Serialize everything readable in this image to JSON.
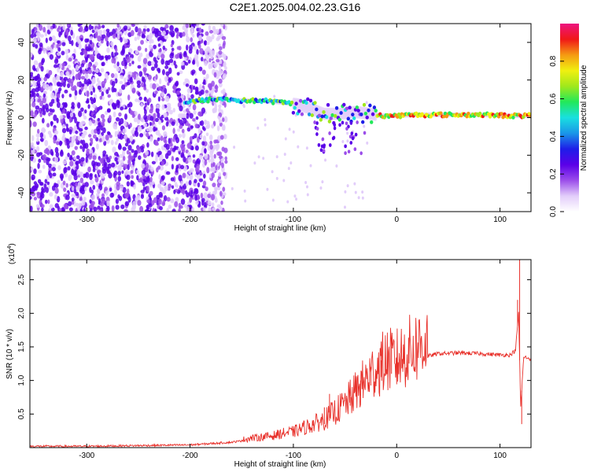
{
  "title": "C2E1.2025.004.02.23.G16",
  "colors": {
    "signal_line": "#e8302a",
    "scatter_dots": "#7a1fe6",
    "axis": "#000000"
  },
  "chart_data": [
    {
      "type": "heatmap",
      "xlabel": "Height of straight line (km)",
      "ylabel": "Frequency (Hz)",
      "xlim": [
        -355,
        130
      ],
      "ylim": [
        -50,
        50
      ],
      "x_ticks": [
        -300,
        -200,
        -100,
        0,
        100
      ],
      "y_ticks": [
        -40,
        -20,
        0,
        20,
        40
      ],
      "colorbar": {
        "label": "Normalized spectral amplitude",
        "range": [
          0.0,
          1.0
        ],
        "ticks": [
          "0.0",
          "0.2",
          "0.4",
          "0.6",
          "0.8"
        ],
        "colormap": [
          "#ffffff",
          "#e2cdfa",
          "#9b4dea",
          "#5a00e8",
          "#1e1ee8",
          "#1a96e8",
          "#19e0e0",
          "#22e85a",
          "#a0e81c",
          "#f0f010",
          "#f59a12",
          "#f01818",
          "#ee1480"
        ]
      },
      "features": {
        "noise_region_x": [
          -355,
          -165
        ],
        "trace": [
          {
            "x": -205,
            "f": 8
          },
          {
            "x": -190,
            "f": 9
          },
          {
            "x": -170,
            "f": 10
          },
          {
            "x": -150,
            "f": 9
          },
          {
            "x": -130,
            "f": 9
          },
          {
            "x": -110,
            "f": 8
          },
          {
            "x": -95,
            "f": 7
          },
          {
            "x": -85,
            "f": 5
          },
          {
            "x": -70,
            "f": 2
          },
          {
            "x": -55,
            "f": 2
          },
          {
            "x": -40,
            "f": 3
          },
          {
            "x": -25,
            "f": 2
          },
          {
            "x": -15,
            "f": 1
          },
          {
            "x": 0,
            "f": 1
          },
          {
            "x": 20,
            "f": 1.5
          },
          {
            "x": 50,
            "f": 1.5
          },
          {
            "x": 80,
            "f": 1.5
          },
          {
            "x": 110,
            "f": 1
          },
          {
            "x": 130,
            "f": 1
          }
        ]
      }
    },
    {
      "type": "line",
      "xlabel": "Height of straight line (km)",
      "ylabel": "SNR (10 * v/v)",
      "exponent_label": "(x10",
      "exponent_sup": "4",
      "xlim": [
        -355,
        130
      ],
      "ylim": [
        0,
        2.8
      ],
      "x_ticks": [
        -300,
        -200,
        -100,
        0,
        100
      ],
      "y_ticks": [
        0.5,
        1.0,
        1.5,
        2.0,
        2.5
      ],
      "y_tick_labels": [
        "0.5",
        "1.0",
        "1.5",
        "2.0",
        "2.5"
      ],
      "envelope": {
        "x": [
          -355,
          -300,
          -250,
          -200,
          -180,
          -160,
          -140,
          -120,
          -110,
          -100,
          -90,
          -80,
          -70,
          -60,
          -50,
          -40,
          -30,
          -20,
          -10,
          0,
          10,
          20,
          30,
          40,
          60,
          80,
          100,
          110,
          115,
          118,
          120,
          123,
          130
        ],
        "y": [
          0.02,
          0.02,
          0.03,
          0.04,
          0.06,
          0.08,
          0.12,
          0.15,
          0.18,
          0.2,
          0.25,
          0.3,
          0.35,
          0.45,
          0.55,
          0.7,
          0.85,
          1.0,
          1.1,
          1.1,
          1.2,
          1.28,
          1.36,
          1.4,
          1.41,
          1.4,
          1.38,
          1.38,
          1.45,
          2.0,
          0.6,
          1.35,
          1.32
        ]
      },
      "spikes": [
        {
          "x": -100,
          "y": 0.28
        },
        {
          "x": -70,
          "y": 0.6
        },
        {
          "x": -65,
          "y": 0.8
        },
        {
          "x": -45,
          "y": 0.75
        },
        {
          "x": -35,
          "y": 1.0
        },
        {
          "x": -25,
          "y": 1.2
        },
        {
          "x": -15,
          "y": 1.3
        },
        {
          "x": -5,
          "y": 1.5
        },
        {
          "x": 117,
          "y": 2.2
        },
        {
          "x": 119,
          "y": 2.8
        },
        {
          "x": 121,
          "y": 0.35
        }
      ]
    }
  ]
}
